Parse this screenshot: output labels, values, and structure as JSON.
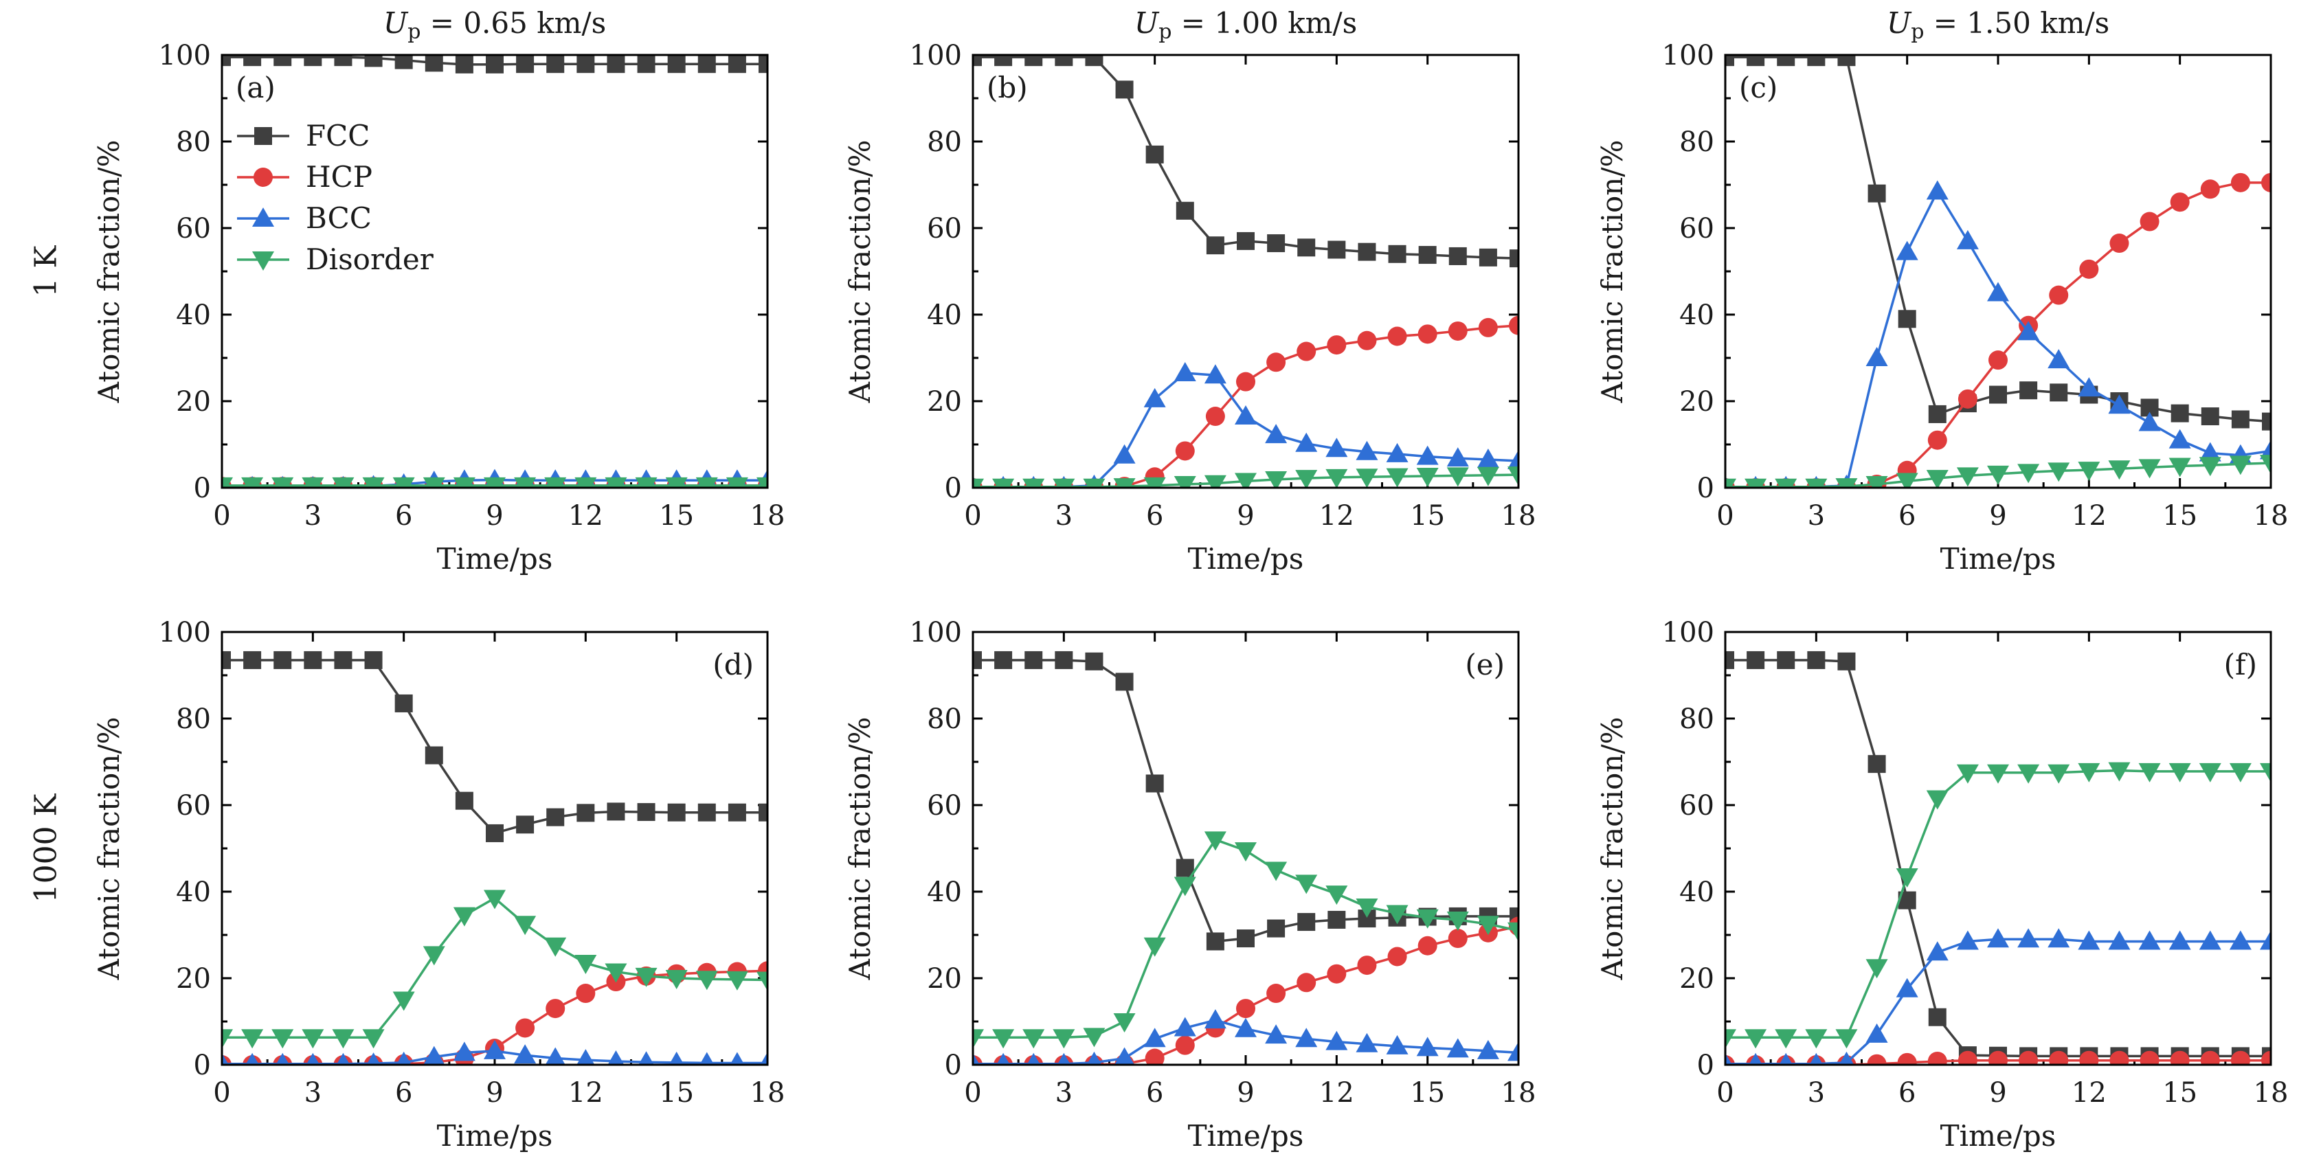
{
  "figure": {
    "column_titles": [
      "U_p = 0.65 km/s",
      "U_p = 1.00 km/s",
      "U_p = 1.50 km/s"
    ],
    "column_titles_display": [
      {
        "sym": "U",
        "sub": "p",
        "rest": " = 0.65 km/s"
      },
      {
        "sym": "U",
        "sub": "p",
        "rest": " = 1.00 km/s"
      },
      {
        "sym": "U",
        "sub": "p",
        "rest": " = 1.50 km/s"
      }
    ],
    "row_labels": [
      "1 K",
      "1000 K"
    ],
    "colors": {
      "FCC": "#3f3f3f",
      "HCP": "#e03c3c",
      "BCC": "#2f6fd6",
      "Disorder": "#3aa86b"
    },
    "markers": {
      "FCC": "square",
      "HCP": "circle",
      "BCC": "triangle-up",
      "Disorder": "triangle-down"
    }
  },
  "chart_data": [
    {
      "type": "line",
      "panel_label": "(a)",
      "panel_label_pos": "top-left",
      "xlabel": "Time/ps",
      "ylabel": "Atomic fraction/%",
      "xlim": [
        0,
        18
      ],
      "ylim": [
        0,
        100
      ],
      "xticks": [
        0,
        3,
        6,
        9,
        12,
        15,
        18
      ],
      "yticks": [
        0,
        20,
        40,
        60,
        80,
        100
      ],
      "x": [
        0,
        1,
        2,
        3,
        4,
        5,
        6,
        7,
        8,
        9,
        10,
        11,
        12,
        13,
        14,
        15,
        16,
        17,
        18
      ],
      "legend": {
        "position": "upper-left",
        "entries": [
          "FCC",
          "HCP",
          "BCC",
          "Disorder"
        ]
      },
      "series": [
        {
          "name": "FCC",
          "values": [
            99.5,
            99.5,
            99.5,
            99.5,
            99.5,
            99.3,
            98.8,
            98.2,
            97.8,
            97.8,
            97.9,
            97.9,
            97.9,
            97.9,
            97.9,
            97.9,
            97.9,
            97.9,
            97.9
          ]
        },
        {
          "name": "HCP",
          "values": [
            0.3,
            0.3,
            0.3,
            0.3,
            0.3,
            0.3,
            0.3,
            0.4,
            0.5,
            0.5,
            0.5,
            0.5,
            0.5,
            0.5,
            0.5,
            0.5,
            0.5,
            0.5,
            0.5
          ]
        },
        {
          "name": "BCC",
          "values": [
            0.2,
            0.2,
            0.2,
            0.2,
            0.2,
            0.4,
            0.8,
            1.4,
            1.7,
            1.8,
            1.7,
            1.7,
            1.7,
            1.7,
            1.7,
            1.7,
            1.7,
            1.7,
            1.7
          ]
        },
        {
          "name": "Disorder",
          "values": [
            0.5,
            0.5,
            0.5,
            0.5,
            0.5,
            0.5,
            0.5,
            0.5,
            0.5,
            0.5,
            0.5,
            0.5,
            0.5,
            0.5,
            0.5,
            0.5,
            0.5,
            0.5,
            0.5
          ]
        }
      ]
    },
    {
      "type": "line",
      "panel_label": "(b)",
      "panel_label_pos": "top-left",
      "xlabel": "Time/ps",
      "ylabel": "Atomic fraction/%",
      "xlim": [
        0,
        18
      ],
      "ylim": [
        0,
        100
      ],
      "xticks": [
        0,
        3,
        6,
        9,
        12,
        15,
        18
      ],
      "yticks": [
        0,
        20,
        40,
        60,
        80,
        100
      ],
      "x": [
        0,
        1,
        2,
        3,
        4,
        5,
        6,
        7,
        8,
        9,
        10,
        11,
        12,
        13,
        14,
        15,
        16,
        17,
        18
      ],
      "series": [
        {
          "name": "FCC",
          "values": [
            99.5,
            99.5,
            99.5,
            99.5,
            99.5,
            92,
            77,
            64,
            56,
            57,
            56.5,
            55.5,
            55,
            54.5,
            54,
            53.8,
            53.5,
            53.2,
            53
          ]
        },
        {
          "name": "HCP",
          "values": [
            0,
            0,
            0,
            0,
            0,
            0.3,
            2.5,
            8.5,
            16.5,
            24.5,
            29,
            31.5,
            33,
            34,
            35,
            35.5,
            36.2,
            37,
            37.5
          ]
        },
        {
          "name": "BCC",
          "values": [
            0.2,
            0.2,
            0.2,
            0.2,
            0.5,
            7.5,
            20.5,
            26.5,
            26,
            16.5,
            12.2,
            10.2,
            9,
            8.3,
            7.8,
            7.2,
            6.8,
            6.5,
            6.2
          ]
        },
        {
          "name": "Disorder",
          "values": [
            0.2,
            0.2,
            0.2,
            0.2,
            0.2,
            0.3,
            0.5,
            0.8,
            1,
            1.5,
            1.9,
            2.2,
            2.4,
            2.5,
            2.6,
            2.7,
            2.8,
            2.9,
            3
          ]
        }
      ]
    },
    {
      "type": "line",
      "panel_label": "(c)",
      "panel_label_pos": "top-left",
      "xlabel": "Time/ps",
      "ylabel": "Atomic fraction/%",
      "xlim": [
        0,
        18
      ],
      "ylim": [
        0,
        100
      ],
      "xticks": [
        0,
        3,
        6,
        9,
        12,
        15,
        18
      ],
      "yticks": [
        0,
        20,
        40,
        60,
        80,
        100
      ],
      "x": [
        0,
        1,
        2,
        3,
        4,
        5,
        6,
        7,
        8,
        9,
        10,
        11,
        12,
        13,
        14,
        15,
        16,
        17,
        18
      ],
      "series": [
        {
          "name": "FCC",
          "values": [
            99.5,
            99.5,
            99.5,
            99.5,
            99.5,
            68,
            39,
            17,
            19.5,
            21.5,
            22.5,
            22,
            21.5,
            20,
            18.5,
            17.2,
            16.5,
            15.8,
            15.3
          ]
        },
        {
          "name": "HCP",
          "values": [
            0,
            0,
            0,
            0,
            0,
            0.8,
            4,
            11,
            20.5,
            29.5,
            37.5,
            44.5,
            50.5,
            56.5,
            61.5,
            66,
            69,
            70.5,
            70.5
          ]
        },
        {
          "name": "BCC",
          "values": [
            0.2,
            0.2,
            0.2,
            0.2,
            0.5,
            30,
            54.5,
            68.5,
            57,
            45,
            36,
            29.5,
            23,
            19,
            15,
            11,
            8,
            7.5,
            8.5
          ]
        },
        {
          "name": "Disorder",
          "values": [
            0.2,
            0.2,
            0.2,
            0.2,
            0.3,
            0.8,
            1.5,
            2.2,
            2.8,
            3.2,
            3.6,
            3.9,
            4.1,
            4.4,
            4.7,
            5,
            5.2,
            5.5,
            5.7
          ]
        }
      ]
    },
    {
      "type": "line",
      "panel_label": "(d)",
      "panel_label_pos": "top-right",
      "xlabel": "Time/ps",
      "ylabel": "Atomic fraction/%",
      "xlim": [
        0,
        18
      ],
      "ylim": [
        0,
        100
      ],
      "xticks": [
        0,
        3,
        6,
        9,
        12,
        15,
        18
      ],
      "yticks": [
        0,
        20,
        40,
        60,
        80,
        100
      ],
      "x": [
        0,
        1,
        2,
        3,
        4,
        5,
        6,
        7,
        8,
        9,
        10,
        11,
        12,
        13,
        14,
        15,
        16,
        17,
        18
      ],
      "series": [
        {
          "name": "FCC",
          "values": [
            93.5,
            93.5,
            93.5,
            93.5,
            93.5,
            93.5,
            83.5,
            71.5,
            61,
            53.5,
            55.5,
            57.2,
            58.2,
            58.5,
            58.4,
            58.3,
            58.3,
            58.3,
            58.3
          ]
        },
        {
          "name": "HCP",
          "values": [
            0,
            0,
            0,
            0,
            0,
            0,
            0.2,
            0.5,
            1.5,
            3.8,
            8.5,
            13,
            16.5,
            19.2,
            20.5,
            21,
            21.3,
            21.5,
            21.7
          ]
        },
        {
          "name": "BCC",
          "values": [
            0.2,
            0.2,
            0.2,
            0.2,
            0.2,
            0.3,
            0.5,
            1.8,
            2.8,
            3.2,
            2.2,
            1.5,
            1.1,
            0.8,
            0.6,
            0.5,
            0.4,
            0.4,
            0.4
          ]
        },
        {
          "name": "Disorder",
          "values": [
            6.3,
            6.3,
            6.3,
            6.3,
            6.3,
            6.3,
            15,
            25.5,
            34.5,
            38.5,
            32.5,
            27.5,
            23.5,
            21.5,
            20.5,
            20,
            19.8,
            19.7,
            19.6
          ]
        }
      ]
    },
    {
      "type": "line",
      "panel_label": "(e)",
      "panel_label_pos": "top-right",
      "xlabel": "Time/ps",
      "ylabel": "Atomic fraction/%",
      "xlim": [
        0,
        18
      ],
      "ylim": [
        0,
        100
      ],
      "xticks": [
        0,
        3,
        6,
        9,
        12,
        15,
        18
      ],
      "yticks": [
        0,
        20,
        40,
        60,
        80,
        100
      ],
      "x": [
        0,
        1,
        2,
        3,
        4,
        5,
        6,
        7,
        8,
        9,
        10,
        11,
        12,
        13,
        14,
        15,
        16,
        17,
        18
      ],
      "series": [
        {
          "name": "FCC",
          "values": [
            93.5,
            93.5,
            93.5,
            93.5,
            93.2,
            88.5,
            65,
            45.5,
            28.5,
            29.2,
            31.5,
            33,
            33.5,
            33.8,
            34,
            34.2,
            34.3,
            34.3,
            34.3
          ]
        },
        {
          "name": "HCP",
          "values": [
            0,
            0,
            0,
            0,
            0,
            0.2,
            1.5,
            4.5,
            8.5,
            13,
            16.5,
            19,
            21,
            23,
            25,
            27.5,
            29.2,
            30.5,
            32
          ]
        },
        {
          "name": "BCC",
          "values": [
            0.2,
            0.2,
            0.2,
            0.2,
            0.5,
            1.5,
            6,
            8.5,
            10.3,
            8.3,
            6.8,
            6,
            5.3,
            4.8,
            4.3,
            3.9,
            3.6,
            3.2,
            2.8
          ]
        },
        {
          "name": "Disorder",
          "values": [
            6.3,
            6.3,
            6.3,
            6.3,
            6.6,
            10,
            27.5,
            41.5,
            52,
            49.5,
            45,
            42,
            39.5,
            36.5,
            35,
            34,
            33.5,
            32.5,
            31
          ]
        }
      ]
    },
    {
      "type": "line",
      "panel_label": "(f)",
      "panel_label_pos": "top-right",
      "xlabel": "Time/ps",
      "ylabel": "Atomic fraction/%",
      "xlim": [
        0,
        18
      ],
      "ylim": [
        0,
        100
      ],
      "xticks": [
        0,
        3,
        6,
        9,
        12,
        15,
        18
      ],
      "yticks": [
        0,
        20,
        40,
        60,
        80,
        100
      ],
      "x": [
        0,
        1,
        2,
        3,
        4,
        5,
        6,
        7,
        8,
        9,
        10,
        11,
        12,
        13,
        14,
        15,
        16,
        17,
        18
      ],
      "series": [
        {
          "name": "FCC",
          "values": [
            93.5,
            93.5,
            93.5,
            93.5,
            93.2,
            69.5,
            38,
            11,
            2.2,
            2.1,
            2,
            2,
            2,
            2,
            2,
            2,
            2,
            2,
            2
          ]
        },
        {
          "name": "HCP",
          "values": [
            0,
            0,
            0,
            0,
            0,
            0.2,
            0.5,
            0.8,
            1,
            1,
            1,
            1,
            1,
            1,
            1,
            1,
            1,
            1,
            1
          ]
        },
        {
          "name": "BCC",
          "values": [
            0.2,
            0.2,
            0.2,
            0.2,
            0.5,
            7,
            17.5,
            26,
            28.5,
            29,
            29,
            29,
            28.5,
            28.5,
            28.5,
            28.5,
            28.5,
            28.5,
            28.5
          ]
        },
        {
          "name": "Disorder",
          "values": [
            6.3,
            6.3,
            6.3,
            6.3,
            6.3,
            22.5,
            43.5,
            61.5,
            67.5,
            67.5,
            67.5,
            67.5,
            67.8,
            68,
            67.8,
            67.8,
            67.8,
            67.8,
            67.8
          ]
        }
      ]
    }
  ]
}
